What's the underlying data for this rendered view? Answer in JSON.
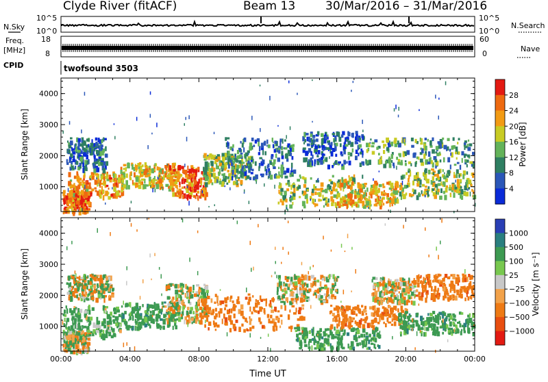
{
  "header": {
    "station": "Clyde River (fitACF)",
    "beam": "Beam 13",
    "dates": "30/Mar/2016 – 31/Mar/2016"
  },
  "left_labels": {
    "nsky": "N.Sky",
    "freq": "Freq.",
    "mhz": "[MHz]",
    "cpid": "CPID"
  },
  "right_labels": {
    "nsearch": "N.Search",
    "nave": "Nave"
  },
  "cpid_value": "twofsound 3503",
  "noise_panel": {
    "left_top": "10^5",
    "left_bottom": "10^0",
    "right_top": "10^5",
    "right_bottom": "10^0"
  },
  "freq_panel": {
    "left_top": "18",
    "left_bottom": "8",
    "right_top": "60",
    "right_bottom": "0"
  },
  "chart_data": [
    {
      "type": "heatmap",
      "name": "power",
      "ylabel": "Slant Range [km]",
      "yticks": [
        "1000",
        "2000",
        "3000",
        "4000"
      ],
      "ylim": [
        200,
        4500
      ],
      "xlim": [
        0,
        24
      ],
      "colorbar_label": "Power [dB]",
      "colorbar_ticks": [
        "4",
        "8",
        "12",
        "16",
        "20",
        "24",
        "28"
      ],
      "colorbar_colors": [
        "#0a2bd8",
        "#2b57b8",
        "#2f7f62",
        "#64b35a",
        "#c8cb24",
        "#f29b14",
        "#ee6a10",
        "#e31a12"
      ],
      "blobs": [
        {
          "t0": 0.1,
          "t1": 1.6,
          "r0": 200,
          "r1": 900,
          "v": 26
        },
        {
          "t0": 0.4,
          "t1": 3.6,
          "r0": 700,
          "r1": 1500,
          "v": 22
        },
        {
          "t0": 0.3,
          "t1": 2.6,
          "r0": 1600,
          "r1": 2600,
          "v": 8
        },
        {
          "t0": 3.4,
          "t1": 6.6,
          "r0": 1000,
          "r1": 1800,
          "v": 19
        },
        {
          "t0": 6.2,
          "t1": 8.4,
          "r0": 700,
          "r1": 1700,
          "v": 25
        },
        {
          "t0": 8.2,
          "t1": 11.0,
          "r0": 1100,
          "r1": 2100,
          "v": 15
        },
        {
          "t0": 9.5,
          "t1": 13.5,
          "r0": 1300,
          "r1": 2600,
          "v": 9
        },
        {
          "t0": 12.5,
          "t1": 17.5,
          "r0": 400,
          "r1": 1400,
          "v": 17
        },
        {
          "t0": 14.0,
          "t1": 17.5,
          "r0": 1700,
          "r1": 2800,
          "v": 7
        },
        {
          "t0": 16.0,
          "t1": 19.5,
          "r0": 400,
          "r1": 1200,
          "v": 21
        },
        {
          "t0": 17.6,
          "t1": 23.9,
          "r0": 1700,
          "r1": 2600,
          "v": 12
        },
        {
          "t0": 19.6,
          "t1": 23.9,
          "r0": 700,
          "r1": 1600,
          "v": 16
        }
      ]
    },
    {
      "type": "heatmap",
      "name": "velocity",
      "ylabel": "Slant Range [km]",
      "yticks": [
        "1000",
        "2000",
        "3000",
        "4000"
      ],
      "ylim": [
        200,
        4500
      ],
      "xlim": [
        0,
        24
      ],
      "xticks": [
        "00:00",
        "04:00",
        "08:00",
        "12:00",
        "16:00",
        "20:00",
        "00:00"
      ],
      "xlabel": "Time UT",
      "colorbar_label": "Velocity [m s⁻¹]",
      "colorbar_ticks": [
        "1000",
        "500",
        "100",
        "25",
        "−25",
        "−100",
        "−500",
        "−1000"
      ],
      "colorbar_colors": [
        "#2a3fb5",
        "#2a7f7f",
        "#3d9a52",
        "#78c84f",
        "#c8c8c8",
        "#f2a24a",
        "#ee7a14",
        "#e84e10",
        "#e31a12"
      ],
      "blobs": [
        {
          "t0": 0.1,
          "t1": 3.4,
          "r0": 700,
          "r1": 1700,
          "v": 200
        },
        {
          "t0": 0.1,
          "t1": 1.6,
          "r0": 200,
          "r1": 900,
          "v": 0
        },
        {
          "t0": 0.3,
          "t1": 3.0,
          "r0": 1900,
          "r1": 2700,
          "v": 0
        },
        {
          "t0": 3.4,
          "t1": 6.8,
          "r0": 1000,
          "r1": 1800,
          "v": 300
        },
        {
          "t0": 6.0,
          "t1": 8.5,
          "r0": 1200,
          "r1": 2400,
          "v": 0
        },
        {
          "t0": 8.0,
          "t1": 14.0,
          "r0": 900,
          "r1": 2100,
          "v": -300
        },
        {
          "t0": 12.5,
          "t1": 16.0,
          "r0": 1800,
          "r1": 2700,
          "v": 0
        },
        {
          "t0": 13.5,
          "t1": 18.5,
          "r0": 300,
          "r1": 1000,
          "v": 300
        },
        {
          "t0": 15.5,
          "t1": 20.0,
          "r0": 1000,
          "r1": 1700,
          "v": -300
        },
        {
          "t0": 18.0,
          "t1": 20.5,
          "r0": 1800,
          "r1": 2600,
          "v": 0
        },
        {
          "t0": 20.5,
          "t1": 23.9,
          "r0": 1900,
          "r1": 2700,
          "v": -300
        },
        {
          "t0": 19.5,
          "t1": 23.9,
          "r0": 800,
          "r1": 1500,
          "v": 300
        }
      ]
    }
  ]
}
